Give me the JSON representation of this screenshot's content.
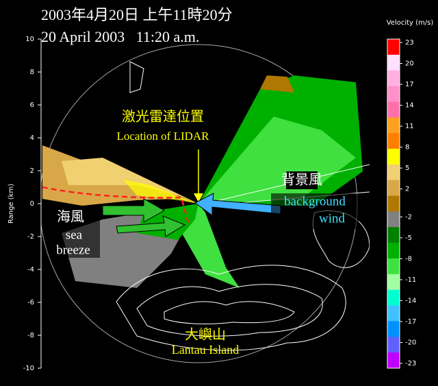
{
  "header": {
    "line1": "2003年4月20日 上午11時20分",
    "line2": "20 April 2003   11:20 a.m."
  },
  "y_axis": {
    "label": "Range (km)",
    "ticks": [
      10,
      8,
      6,
      4,
      2,
      0,
      -2,
      -4,
      -6,
      -8,
      -10
    ]
  },
  "colorbar": {
    "label": "Velocity (m/s)",
    "ticks": [
      23,
      20,
      17,
      14,
      11,
      8,
      5,
      2,
      -2,
      -5,
      -8,
      -11,
      -14,
      -17,
      -20,
      -23
    ],
    "colors": [
      "#ff0000",
      "#ffe0ff",
      "#ffb0e0",
      "#ff90c8",
      "#ff70a8",
      "#ffa020",
      "#ff8000",
      "#ffff00",
      "#f0d070",
      "#d8a848",
      "#b07800",
      "#808080",
      "#008000",
      "#00b000",
      "#40e040",
      "#a0ffa0",
      "#00ffd0",
      "#40c0ff",
      "#0090ff",
      "#6060ff",
      "#c000ff"
    ]
  },
  "annotations": {
    "lidar_zh": "激光雷達位置",
    "lidar_en": "Location of LIDAR",
    "wind_zh": "背景風",
    "wind_en1": "background",
    "wind_en2": "wind",
    "sea_zh": "海風",
    "sea_en1": "sea",
    "sea_en2": "breeze",
    "island_zh": "大嶼山",
    "island_en": "Lantau Island"
  }
}
